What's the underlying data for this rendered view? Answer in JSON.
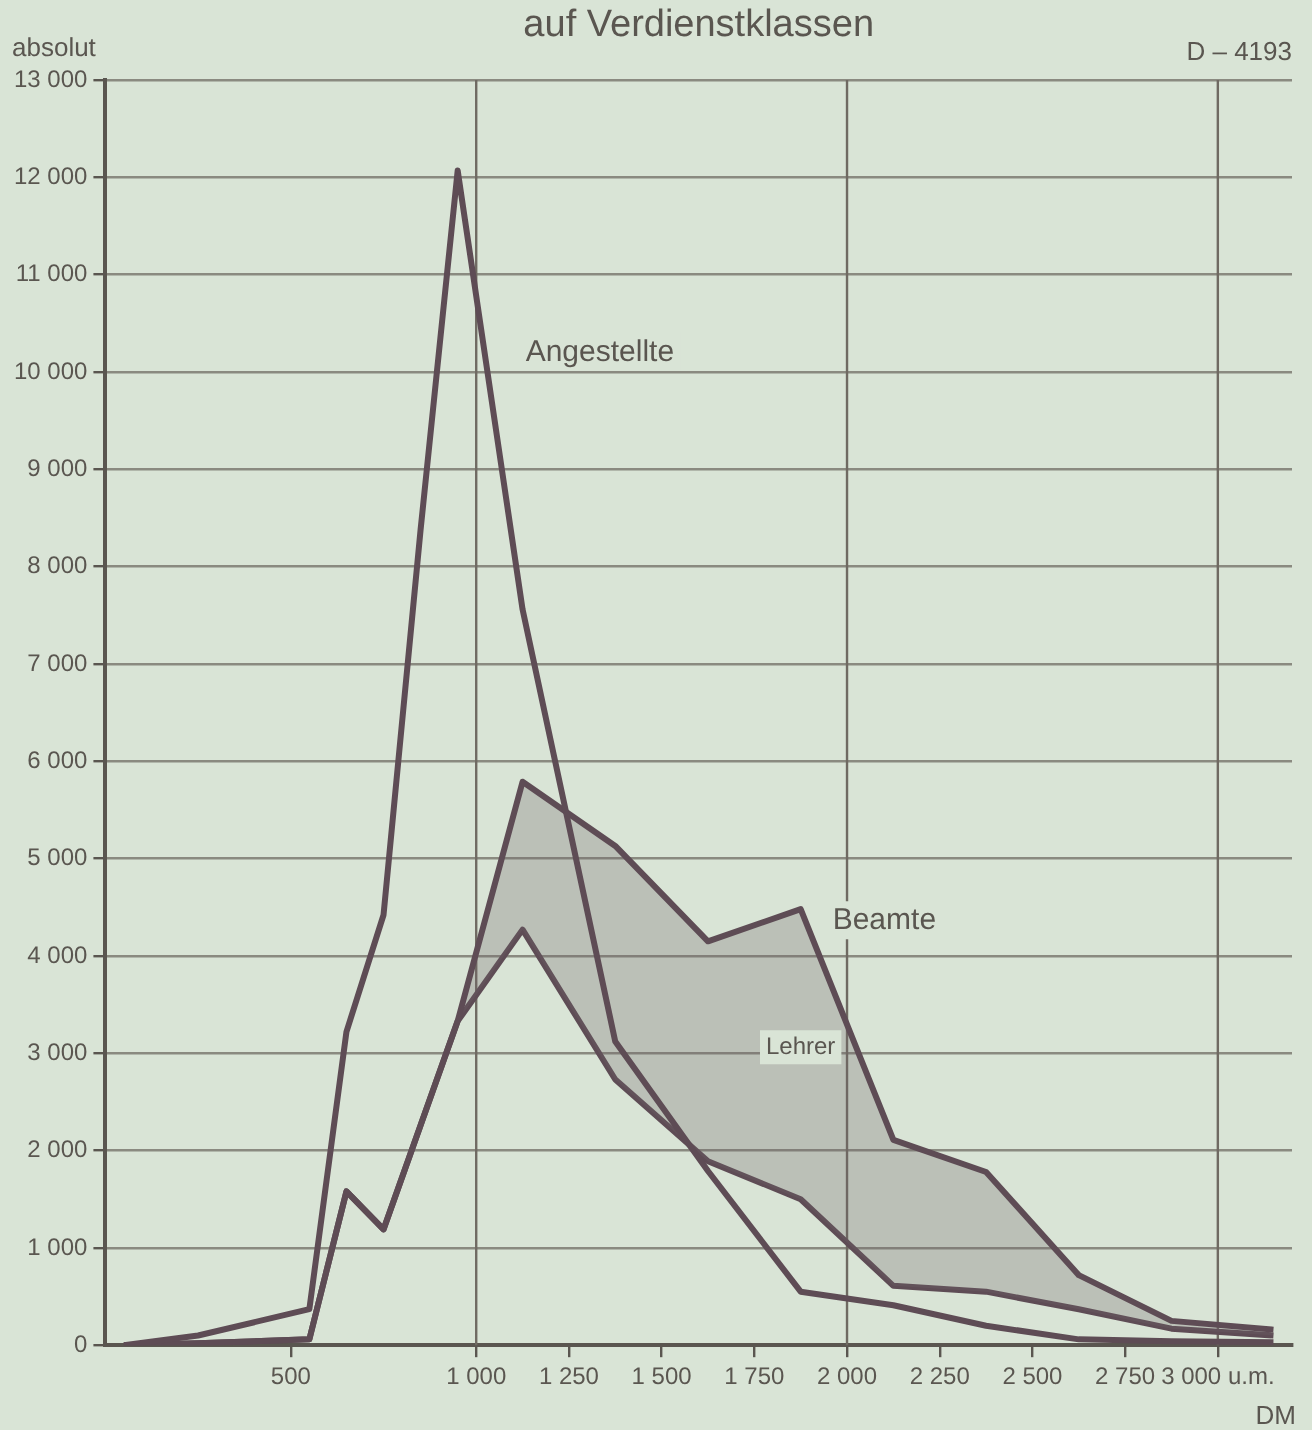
{
  "chart_data": {
    "type": "line",
    "title": "auf Verdienstklassen",
    "ylabel": "absolut",
    "xlabel": "DM",
    "annotations": [
      "D – 4193",
      "Lehrer"
    ],
    "series": [
      {
        "name": "Angestellte",
        "color": "#5e4c55",
        "x": [
          50,
          250,
          550,
          650,
          750,
          850,
          950,
          1125,
          1375,
          1625,
          1875,
          2125,
          2375,
          2625,
          2875,
          3150
        ],
        "values": [
          0,
          100,
          370,
          3220,
          4420,
          8380,
          12070,
          7560,
          3120,
          1790,
          550,
          410,
          200,
          60,
          40,
          30
        ]
      },
      {
        "name": "Beamte",
        "type": "area",
        "color": "#5e4c55",
        "x": [
          50,
          250,
          550,
          650,
          750,
          850,
          950,
          1125,
          1375,
          1625,
          1875,
          2125,
          2375,
          2625,
          2875,
          3150
        ],
        "values": [
          0,
          20,
          60,
          1580,
          1190,
          2260,
          3330,
          5790,
          5130,
          4150,
          4480,
          2110,
          1780,
          720,
          250,
          160
        ]
      },
      {
        "color": "#5e4c55",
        "x": [
          50,
          250,
          550,
          650,
          750,
          850,
          950,
          1125,
          1375,
          1625,
          1875,
          2125,
          2375,
          2625,
          2875,
          3150
        ],
        "values": [
          0,
          20,
          60,
          1580,
          1190,
          2260,
          3330,
          4270,
          2730,
          1890,
          1500,
          610,
          550,
          370,
          170,
          100
        ]
      }
    ],
    "xlim": [
      0,
      3200
    ],
    "xticks": [
      500,
      {
        "value": 1000,
        "label": "1 000"
      },
      {
        "value": 1250,
        "label": "1 250"
      },
      {
        "value": 1500,
        "label": "1 500"
      },
      {
        "value": 1750,
        "label": "1 750"
      },
      {
        "value": 2000,
        "label": "2 000"
      },
      {
        "value": 2250,
        "label": "2 250"
      },
      {
        "value": 2500,
        "label": "2 500"
      },
      {
        "value": 2750,
        "label": "2 750"
      },
      {
        "value": 3000,
        "label": "3 000 u.m."
      }
    ],
    "ylim": [
      0,
      13000
    ],
    "yticks": [
      0,
      {
        "value": 1000,
        "label": "1 000"
      },
      {
        "value": 2000,
        "label": "2 000"
      },
      {
        "value": 3000,
        "label": "3 000"
      },
      {
        "value": 4000,
        "label": "4 000"
      },
      {
        "value": 5000,
        "label": "5 000"
      },
      {
        "value": 6000,
        "label": "6 000"
      },
      {
        "value": 7000,
        "label": "7 000"
      },
      {
        "value": 8000,
        "label": "8 000"
      },
      {
        "value": 9000,
        "label": "9 000"
      },
      {
        "value": 10000,
        "label": "10 000"
      },
      {
        "value": 11000,
        "label": "11 000"
      },
      {
        "value": 12000,
        "label": "12 000"
      },
      {
        "value": 13000,
        "label": "13 000"
      }
    ],
    "ref_lines": [
      {
        "axis": "x",
        "value": 1000,
        "color": "#6f6a62"
      },
      {
        "axis": "x",
        "value": 2000,
        "color": "#6f6a62"
      },
      {
        "axis": "x",
        "value": 3000,
        "color": "#6f6a62"
      }
    ],
    "grid": "y",
    "legend": false,
    "marker": "none",
    "line_style": "solid"
  }
}
